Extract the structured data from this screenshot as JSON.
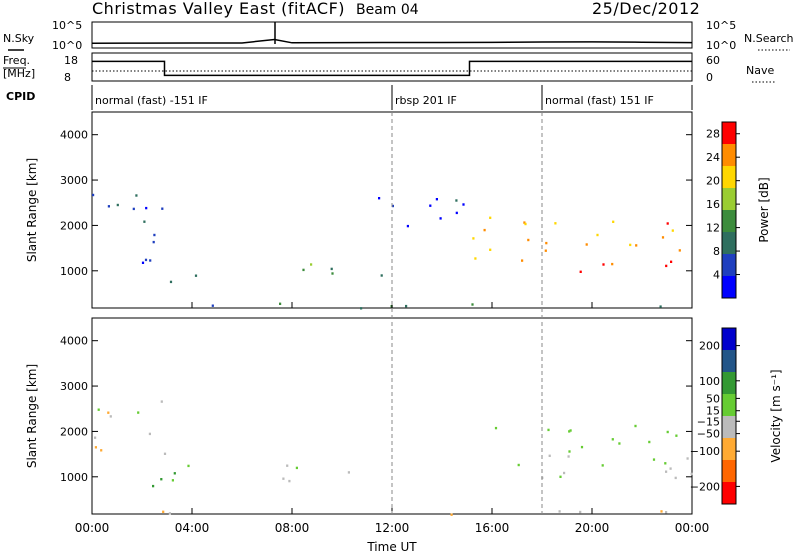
{
  "header": {
    "title": "Christmas Valley East (fitACF)",
    "beam": "Beam 04",
    "date": "25/Dec/2012"
  },
  "top_panels": {
    "nsky_label": "N.Sky",
    "nsearch_label": "N.Search",
    "freq_label_1": "Freq.",
    "freq_label_2": "[MHz]",
    "nave_label": "Nave",
    "cpid_label": "CPID",
    "noise_ticks": [
      "10^5",
      "10^0"
    ],
    "freq_ticks": [
      "18",
      "8"
    ],
    "nave_ticks": [
      "60",
      "0"
    ],
    "cpid_segments": [
      {
        "label": "normal (fast) -151 IF",
        "start_h": 0,
        "end_h": 12
      },
      {
        "label": "rbsp 201 IF",
        "start_h": 12,
        "end_h": 18
      },
      {
        "label": "normal (fast) 151 IF",
        "start_h": 18,
        "end_h": 24
      }
    ]
  },
  "chart_data": [
    {
      "type": "line",
      "name": "noise",
      "xlim": [
        0,
        24
      ],
      "series": [
        {
          "name": "N.Sky",
          "x": [
            0,
            2,
            4,
            6,
            7.3,
            8,
            10,
            12,
            14,
            16,
            18,
            20,
            22,
            24
          ],
          "y": [
            0.5,
            0.6,
            0.7,
            0.7,
            3.0,
            0.8,
            0.9,
            1.0,
            1.0,
            1.1,
            1.3,
            1.4,
            1.2,
            0.9
          ]
        }
      ]
    },
    {
      "type": "line",
      "name": "frequency",
      "xlim": [
        0,
        24
      ],
      "series": [
        {
          "name": "Freq.",
          "x": [
            0,
            2.9,
            2.9,
            15.1,
            15.1,
            24
          ],
          "y": [
            15,
            15,
            10,
            10,
            15,
            15
          ]
        }
      ]
    },
    {
      "type": "heatmap",
      "name": "power",
      "xlabel": "",
      "ylabel": "Slant Range [km]",
      "xlim": [
        0,
        24
      ],
      "ylim": [
        180,
        4500
      ],
      "yticks": [
        1000,
        2000,
        3000,
        4000
      ],
      "colorbar": {
        "label": "Power [dB]",
        "ticks": [
          4,
          8,
          12,
          16,
          20,
          24,
          28
        ],
        "range": [
          0,
          30
        ]
      },
      "regions": [
        {
          "x": [
            0,
            3
          ],
          "y": [
            1500,
            2800
          ],
          "value": 6
        },
        {
          "x": [
            1,
            4
          ],
          "y": [
            1150,
            1500
          ],
          "value": 4
        },
        {
          "x": [
            3,
            5
          ],
          "y": [
            700,
            1000
          ],
          "value": 8
        },
        {
          "x": [
            7,
            12
          ],
          "y": [
            900,
            1300
          ],
          "value": 12
        },
        {
          "x": [
            15.2,
            24
          ],
          "y": [
            1000,
            2200
          ],
          "value": 24
        },
        {
          "x": [
            11,
            15
          ],
          "y": [
            1800,
            2700
          ],
          "value": 4
        },
        {
          "x": [
            0,
            24
          ],
          "y": [
            180,
            300
          ],
          "value": 10
        }
      ]
    },
    {
      "type": "heatmap",
      "name": "velocity",
      "xlabel": "Time UT",
      "ylabel": "Slant Range [km]",
      "xlim": [
        0,
        24
      ],
      "ylim": [
        180,
        4500
      ],
      "yticks": [
        1000,
        2000,
        3000,
        4000
      ],
      "xticks": [
        "00:00",
        "04:00",
        "08:00",
        "12:00",
        "16:00",
        "20:00",
        "00:00"
      ],
      "colorbar": {
        "label": "Velocity [m s⁻¹]",
        "ticks": [
          200,
          100,
          50,
          15,
          -15,
          -50,
          -100,
          -200
        ],
        "range": [
          -250,
          250
        ]
      },
      "regions": [
        {
          "x": [
            0,
            3
          ],
          "y": [
            1500,
            2800
          ],
          "value": -40
        },
        {
          "x": [
            2,
            5
          ],
          "y": [
            700,
            1300
          ],
          "value": 60
        },
        {
          "x": [
            7,
            12
          ],
          "y": [
            900,
            1300
          ],
          "value": -20
        },
        {
          "x": [
            15.2,
            24
          ],
          "y": [
            1000,
            2200
          ],
          "value": 0
        },
        {
          "x": [
            0,
            24
          ],
          "y": [
            180,
            300
          ],
          "value": -60
        }
      ]
    }
  ],
  "colors": {
    "power": [
      "#0000ff",
      "#1f3fbf",
      "#2f6f5f",
      "#3c8c3c",
      "#9acd32",
      "#ffd700",
      "#ff8c00",
      "#ff0000"
    ],
    "velocity": [
      "#ff0000",
      "#ff6600",
      "#ffaa33",
      "#bbbbbb",
      "#66cc33",
      "#339933",
      "#225588",
      "#0000cc"
    ]
  }
}
